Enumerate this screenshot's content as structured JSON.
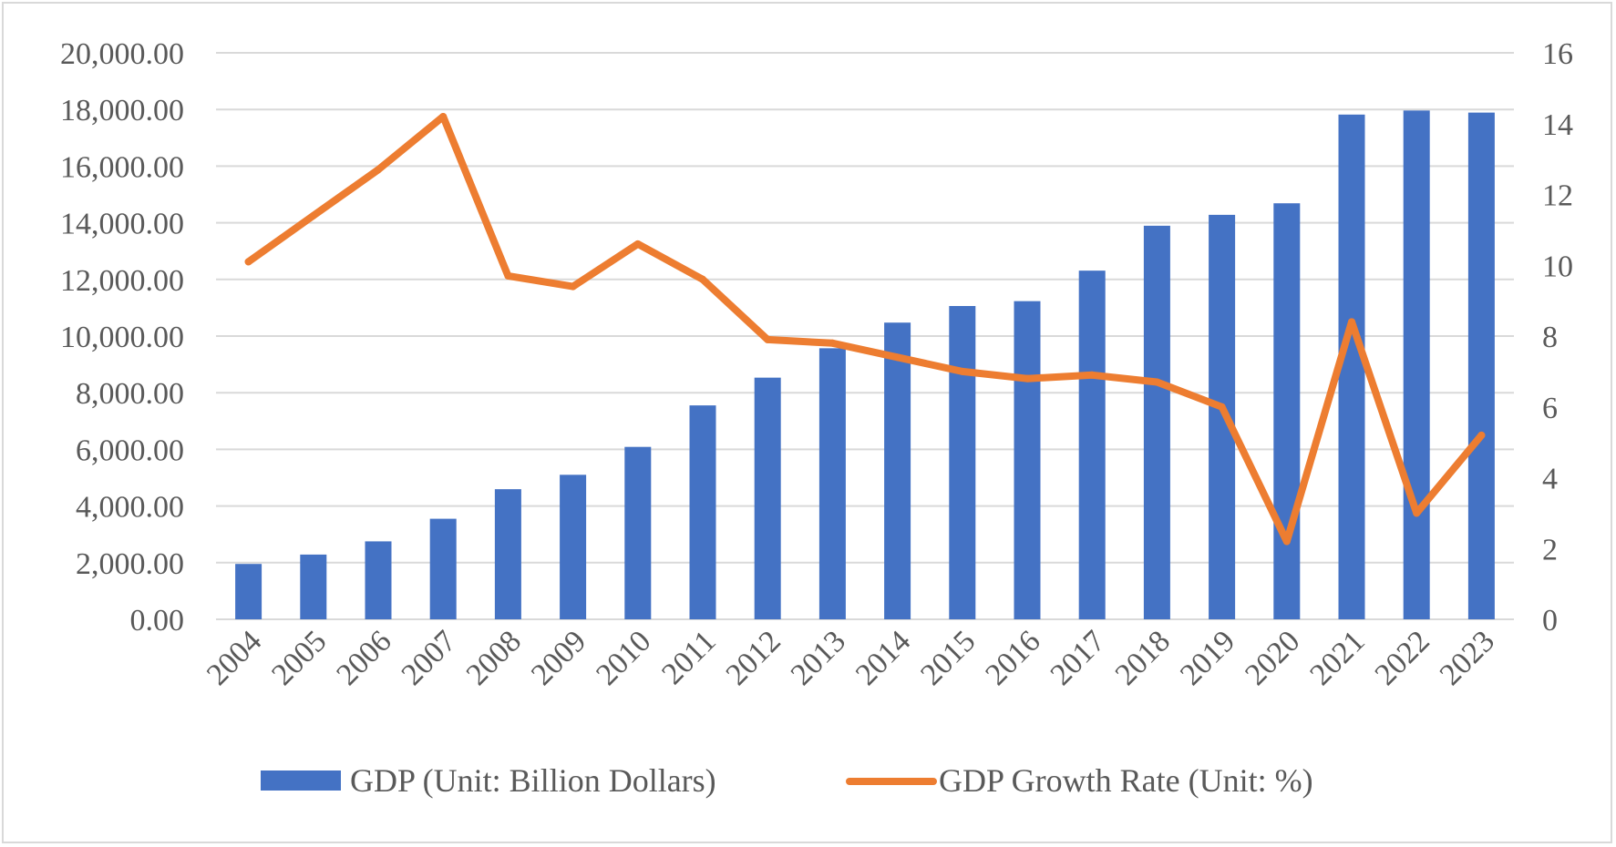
{
  "chart_data": {
    "type": "bar+line",
    "categories": [
      "2004",
      "2005",
      "2006",
      "2007",
      "2008",
      "2009",
      "2010",
      "2011",
      "2012",
      "2013",
      "2014",
      "2015",
      "2016",
      "2017",
      "2018",
      "2019",
      "2020",
      "2021",
      "2022",
      "2023"
    ],
    "series": [
      {
        "name": "GDP (Unit: Billion Dollars)",
        "type": "bar",
        "axis": "left",
        "color": "#4472C4",
        "values": [
          1955,
          2286,
          2752,
          3550,
          4594,
          5102,
          6087,
          7552,
          8532,
          9570,
          10475,
          11061,
          11233,
          12310,
          13895,
          14280,
          14688,
          17820,
          17963,
          17890
        ]
      },
      {
        "name": "GDP Growth Rate (Unit: %)",
        "type": "line",
        "axis": "right",
        "color": "#ED7D31",
        "values": [
          10.1,
          11.4,
          12.7,
          14.2,
          9.7,
          9.4,
          10.6,
          9.6,
          7.9,
          7.8,
          7.4,
          7.0,
          6.8,
          6.9,
          6.7,
          6.0,
          2.2,
          8.4,
          3.0,
          5.2
        ]
      }
    ],
    "left_axis": {
      "ylim": [
        0,
        20000
      ],
      "ticks": [
        "0.00",
        "2,000.00",
        "4,000.00",
        "6,000.00",
        "8,000.00",
        "10,000.00",
        "12,000.00",
        "14,000.00",
        "16,000.00",
        "18,000.00",
        "20,000.00"
      ]
    },
    "right_axis": {
      "ylim": [
        0,
        16
      ],
      "ticks": [
        "0",
        "2",
        "4",
        "6",
        "8",
        "10",
        "12",
        "14",
        "16"
      ]
    },
    "grid": true,
    "legend": "bottom-center",
    "title": "",
    "xlabel": "",
    "ylabel": ""
  },
  "legend": {
    "bar_label": "GDP (Unit: Billion Dollars)",
    "line_label": "GDP Growth Rate (Unit: %)"
  },
  "colors": {
    "bar": "#4472C4",
    "line": "#ED7D31",
    "grid": "#d9d9d9",
    "text": "#595959"
  }
}
